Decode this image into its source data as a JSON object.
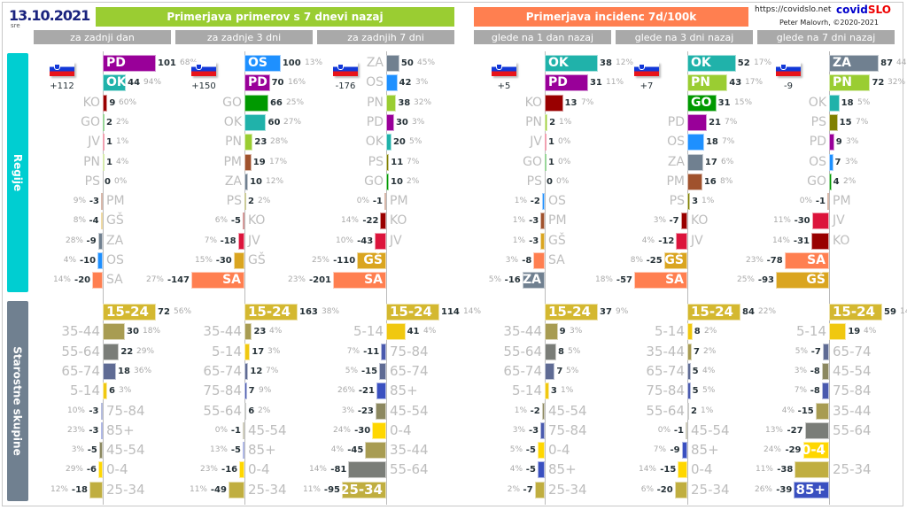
{
  "date": "13.10.2021",
  "weekday": "sre",
  "header_cases": "Primerjava primerov s 7 dnevi nazaj",
  "header_incidence": "Primerjava incidenc 7d/100k",
  "url": "https://covidslo.net",
  "brand_a": "covid",
  "brand_b": "SLO",
  "author": "Peter Malovrh, ©2020-2021",
  "section_regions": "Regije",
  "section_ages": "Starostne skupine",
  "colors": {
    "PD": "#990099",
    "OK": "#20b2aa",
    "KO": "#990000",
    "GO": "#009900",
    "JV": "#dc143c",
    "PN": "#9acd32",
    "PS": "#808000",
    "PM": "#a0522d",
    "GŠ": "#daa520",
    "ZA": "#708090",
    "OS": "#1e90ff",
    "SA": "#ff7f50",
    "15-24": "#d4b830",
    "35-44": "#a89c52",
    "55-64": "#7a7d78",
    "65-74": "#5f6b94",
    "5-14": "#f0c810",
    "75-84": "#4a5aae",
    "85+": "#3a50c0",
    "45-54": "#8c8860",
    "0-4": "#ffd700",
    "25-34": "#c0ae40"
  },
  "chart_data": {
    "type": "bar",
    "orientation": "horizontal",
    "panels": [
      {
        "subtitle": "za zadnji dan",
        "total": "+112",
        "regions": [
          [
            "PD",
            101,
            "68%",
            1
          ],
          [
            "OK",
            44,
            "94%",
            1
          ],
          [
            "KO",
            9,
            "60%",
            0
          ],
          [
            "GO",
            2,
            "2%",
            0
          ],
          [
            "JV",
            1,
            "1%",
            0
          ],
          [
            "PN",
            1,
            "4%",
            0
          ],
          [
            "PS",
            0,
            "0%",
            0
          ],
          [
            "PM",
            -3,
            "9%",
            0
          ],
          [
            "GŠ",
            -4,
            "8%",
            0
          ],
          [
            "ZA",
            -9,
            "28%",
            0
          ],
          [
            "OS",
            -10,
            "4%",
            0
          ],
          [
            "SA",
            -20,
            "14%",
            0
          ]
        ],
        "ages": [
          [
            "15-24",
            72,
            "56%",
            1
          ],
          [
            "35-44",
            30,
            "18%",
            0
          ],
          [
            "55-64",
            22,
            "29%",
            0
          ],
          [
            "65-74",
            18,
            "36%",
            0
          ],
          [
            "5-14",
            6,
            "3%",
            0
          ],
          [
            "75-84",
            -3,
            "10%",
            0
          ],
          [
            "85+",
            -3,
            "23%",
            0
          ],
          [
            "45-54",
            -5,
            "3%",
            0
          ],
          [
            "0-4",
            -6,
            "29%",
            0
          ],
          [
            "25-34",
            -18,
            "12%",
            0
          ]
        ]
      },
      {
        "subtitle": "za zadnje 3 dni",
        "total": "+150",
        "regions": [
          [
            "OS",
            100,
            "13%",
            1
          ],
          [
            "PD",
            70,
            "16%",
            1
          ],
          [
            "GO",
            66,
            "25%",
            0
          ],
          [
            "OK",
            60,
            "27%",
            0
          ],
          [
            "PN",
            23,
            "28%",
            0
          ],
          [
            "PM",
            19,
            "17%",
            0
          ],
          [
            "ZA",
            10,
            "12%",
            0
          ],
          [
            "PS",
            2,
            "2%",
            0
          ],
          [
            "KO",
            -5,
            "6%",
            0
          ],
          [
            "JV",
            -18,
            "7%",
            0
          ],
          [
            "GŠ",
            -30,
            "15%",
            0
          ],
          [
            "SA",
            -147,
            "27%",
            1
          ]
        ],
        "ages": [
          [
            "15-24",
            163,
            "38%",
            1
          ],
          [
            "35-44",
            23,
            "4%",
            0
          ],
          [
            "5-14",
            17,
            "3%",
            0
          ],
          [
            "65-74",
            12,
            "7%",
            0
          ],
          [
            "75-84",
            7,
            "9%",
            0
          ],
          [
            "55-64",
            6,
            "2%",
            0
          ],
          [
            "45-54",
            -1,
            "0%",
            0
          ],
          [
            "85+",
            -5,
            "13%",
            0
          ],
          [
            "0-4",
            -16,
            "23%",
            0
          ],
          [
            "25-34",
            -49,
            "11%",
            0
          ]
        ]
      },
      {
        "subtitle": "za zadnjih 7 dni",
        "total": "-176",
        "regions": [
          [
            "ZA",
            50,
            "45%",
            0
          ],
          [
            "OS",
            42,
            "3%",
            0
          ],
          [
            "PN",
            38,
            "32%",
            0
          ],
          [
            "PD",
            30,
            "3%",
            0
          ],
          [
            "OK",
            20,
            "5%",
            0
          ],
          [
            "PS",
            11,
            "7%",
            0
          ],
          [
            "GO",
            10,
            "2%",
            0
          ],
          [
            "PM",
            -1,
            "0%",
            0
          ],
          [
            "KO",
            -22,
            "14%",
            0
          ],
          [
            "JV",
            -43,
            "10%",
            0
          ],
          [
            "GŠ",
            -110,
            "25%",
            1
          ],
          [
            "SA",
            -201,
            "23%",
            1
          ]
        ],
        "ages": [
          [
            "15-24",
            114,
            "14%",
            1
          ],
          [
            "5-14",
            41,
            "4%",
            0
          ],
          [
            "75-84",
            -11,
            "7%",
            0
          ],
          [
            "65-74",
            -15,
            "5%",
            0
          ],
          [
            "85+",
            -21,
            "26%",
            0
          ],
          [
            "45-54",
            -23,
            "3%",
            0
          ],
          [
            "0-4",
            -30,
            "24%",
            0
          ],
          [
            "35-44",
            -45,
            "4%",
            0
          ],
          [
            "55-64",
            -81,
            "14%",
            0
          ],
          [
            "25-34",
            -95,
            "11%",
            1
          ]
        ]
      },
      {
        "subtitle": "glede na 1 dan nazaj",
        "total": "+5",
        "regions": [
          [
            "OK",
            38,
            "12%",
            1
          ],
          [
            "PD",
            31,
            "11%",
            1
          ],
          [
            "KO",
            13,
            "7%",
            0
          ],
          [
            "PN",
            2,
            "1%",
            0
          ],
          [
            "JV",
            1,
            "0%",
            0
          ],
          [
            "GO",
            1,
            "0%",
            0
          ],
          [
            "PS",
            0,
            "0%",
            0
          ],
          [
            "OS",
            -2,
            "1%",
            0
          ],
          [
            "PM",
            -3,
            "1%",
            0
          ],
          [
            "GŠ",
            -3,
            "1%",
            0
          ],
          [
            "SA",
            -8,
            "3%",
            0
          ],
          [
            "ZA",
            -16,
            "5%",
            1
          ]
        ],
        "ages": [
          [
            "15-24",
            37,
            "9%",
            1
          ],
          [
            "35-44",
            9,
            "3%",
            0
          ],
          [
            "55-64",
            8,
            "5%",
            0
          ],
          [
            "65-74",
            7,
            "5%",
            0
          ],
          [
            "5-14",
            3,
            "1%",
            0
          ],
          [
            "45-54",
            -2,
            "1%",
            0
          ],
          [
            "75-84",
            -3,
            "3%",
            0
          ],
          [
            "0-4",
            -5,
            "5%",
            0
          ],
          [
            "85+",
            -5,
            "4%",
            0
          ],
          [
            "25-34",
            -7,
            "2%",
            0
          ]
        ]
      },
      {
        "subtitle": "glede na 3 dni nazaj",
        "total": "+7",
        "regions": [
          [
            "OK",
            52,
            "17%",
            1
          ],
          [
            "PN",
            43,
            "17%",
            1
          ],
          [
            "GO",
            31,
            "15%",
            1
          ],
          [
            "PD",
            21,
            "7%",
            0
          ],
          [
            "OS",
            18,
            "7%",
            0
          ],
          [
            "ZA",
            17,
            "6%",
            0
          ],
          [
            "PM",
            16,
            "8%",
            0
          ],
          [
            "PS",
            3,
            "1%",
            0
          ],
          [
            "KO",
            -7,
            "3%",
            0
          ],
          [
            "JV",
            -12,
            "4%",
            0
          ],
          [
            "GŠ",
            -25,
            "8%",
            1
          ],
          [
            "SA",
            -57,
            "18%",
            1
          ]
        ],
        "ages": [
          [
            "15-24",
            84,
            "22%",
            1
          ],
          [
            "5-14",
            8,
            "2%",
            0
          ],
          [
            "35-44",
            7,
            "2%",
            0
          ],
          [
            "65-74",
            5,
            "4%",
            0
          ],
          [
            "75-84",
            5,
            "5%",
            0
          ],
          [
            "55-64",
            2,
            "1%",
            0
          ],
          [
            "45-54",
            -1,
            "0%",
            0
          ],
          [
            "85+",
            -9,
            "7%",
            0
          ],
          [
            "0-4",
            -15,
            "14%",
            0
          ],
          [
            "25-34",
            -20,
            "6%",
            0
          ]
        ]
      },
      {
        "subtitle": "glede na 7 dni nazaj",
        "total": "-9",
        "regions": [
          [
            "ZA",
            87,
            "44%",
            1
          ],
          [
            "PN",
            72,
            "32%",
            1
          ],
          [
            "OK",
            18,
            "5%",
            0
          ],
          [
            "PS",
            15,
            "7%",
            0
          ],
          [
            "PD",
            9,
            "3%",
            0
          ],
          [
            "OS",
            7,
            "3%",
            0
          ],
          [
            "GO",
            4,
            "2%",
            0
          ],
          [
            "PM",
            -1,
            "0%",
            0
          ],
          [
            "JV",
            -30,
            "11%",
            0
          ],
          [
            "KO",
            -31,
            "14%",
            0
          ],
          [
            "SA",
            -78,
            "23%",
            1
          ],
          [
            "GŠ",
            -93,
            "25%",
            1
          ]
        ],
        "ages": [
          [
            "15-24",
            59,
            "14%",
            1
          ],
          [
            "5-14",
            19,
            "4%",
            0
          ],
          [
            "65-74",
            -7,
            "5%",
            0
          ],
          [
            "45-54",
            -8,
            "3%",
            0
          ],
          [
            "75-84",
            -8,
            "7%",
            0
          ],
          [
            "35-44",
            -15,
            "4%",
            0
          ],
          [
            "55-64",
            -27,
            "13%",
            0
          ],
          [
            "0-4",
            -29,
            "24%",
            1
          ],
          [
            "25-34",
            -38,
            "11%",
            0
          ],
          [
            "85+",
            -39,
            "26%",
            1
          ]
        ]
      }
    ]
  }
}
